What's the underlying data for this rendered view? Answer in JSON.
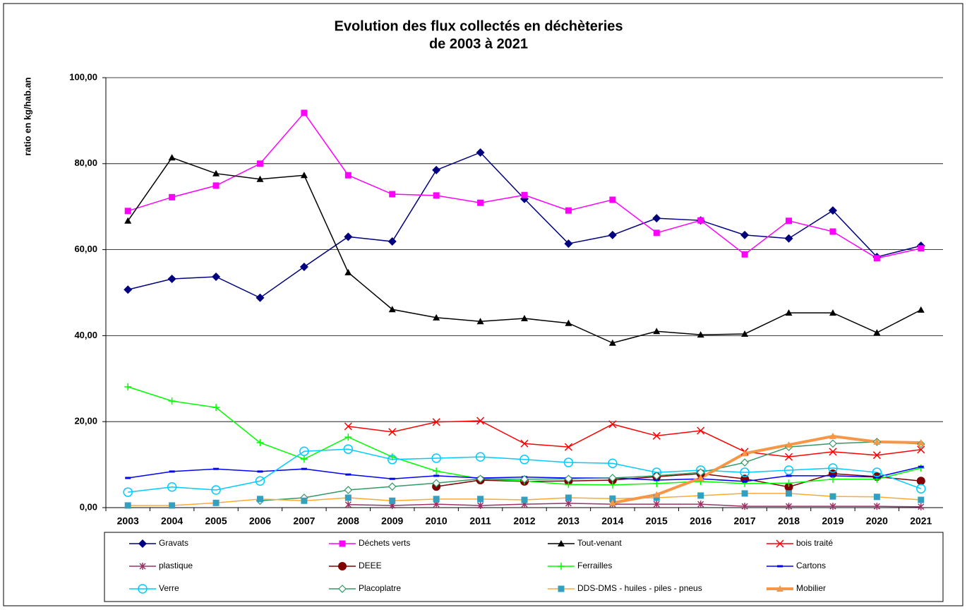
{
  "chart_data": {
    "type": "line",
    "title": "Evolution des flux collectés en déchèteries",
    "subtitle": "de 2003 à 2021",
    "y_label": "ratio en kg/hab.an",
    "categories": [
      "2003",
      "2004",
      "2005",
      "2006",
      "2007",
      "2008",
      "2009",
      "2010",
      "2011",
      "2012",
      "2013",
      "2014",
      "2015",
      "2016",
      "2017",
      "2018",
      "2019",
      "2020",
      "2021"
    ],
    "ylim": [
      0,
      100
    ],
    "yticks": [
      {
        "value": 0,
        "label": "0,00"
      },
      {
        "value": 20,
        "label": "20,00"
      },
      {
        "value": 40,
        "label": "40,00"
      },
      {
        "value": 60,
        "label": "60,00"
      },
      {
        "value": 80,
        "label": "80,00"
      },
      {
        "value": 100,
        "label": "100,00"
      }
    ],
    "grid": true,
    "legend": "bottom",
    "series": [
      {
        "name": "Gravats",
        "color": "#000080",
        "marker": "diamond",
        "values": [
          50.7,
          53.2,
          53.7,
          48.8,
          56,
          63,
          61.9,
          78.5,
          82.6,
          71.8,
          61.4,
          63.4,
          67.3,
          66.8,
          63.4,
          62.6,
          69.1,
          58.3,
          60.9
        ]
      },
      {
        "name": "Déchets verts",
        "color": "#ff00ff",
        "marker": "square",
        "values": [
          69,
          72.2,
          74.9,
          80,
          91.8,
          77.3,
          72.9,
          72.6,
          70.9,
          72.7,
          69.1,
          71.6,
          63.9,
          66.8,
          58.9,
          66.7,
          64.2,
          58,
          60.3
        ]
      },
      {
        "name": "Tout-venant",
        "color": "#000000",
        "marker": "triangle",
        "values": [
          66.7,
          81.4,
          77.7,
          76.4,
          77.3,
          54.7,
          46.1,
          44.2,
          43.3,
          44,
          42.9,
          38.3,
          41,
          40.2,
          40.4,
          45.3,
          45.3,
          40.7,
          46
        ]
      },
      {
        "name": "bois traité",
        "color": "#ff0000",
        "marker": "x",
        "values": [
          null,
          null,
          null,
          null,
          null,
          18.9,
          17.6,
          19.9,
          20.2,
          14.9,
          14.1,
          19.4,
          16.7,
          17.9,
          13,
          11.8,
          13,
          12.2,
          13.5
        ]
      },
      {
        "name": "plastique",
        "color": "#993366",
        "marker": "star",
        "values": [
          null,
          null,
          null,
          null,
          null,
          0.7,
          0.5,
          0.8,
          0.5,
          0.8,
          1,
          0.8,
          0.8,
          0.8,
          0.3,
          0.3,
          0.3,
          0.3,
          0.2
        ]
      },
      {
        "name": "DEEE",
        "color": "#800000",
        "marker": "circle",
        "values": [
          null,
          null,
          null,
          null,
          null,
          null,
          null,
          4.9,
          6.4,
          6.1,
          6.2,
          6.4,
          7.2,
          7.9,
          6.7,
          4.8,
          7.9,
          7.2,
          6.2
        ]
      },
      {
        "name": "Ferrailles",
        "color": "#00ff00",
        "marker": "plus",
        "values": [
          28.1,
          24.8,
          23.3,
          15.1,
          11.3,
          16.4,
          11.8,
          8.5,
          6.7,
          6.2,
          5.4,
          5.3,
          5.6,
          6.1,
          5.6,
          5.7,
          6.6,
          6.6,
          9.2
        ]
      },
      {
        "name": "Cartons",
        "color": "#0000ff",
        "marker": "dash",
        "values": [
          6.9,
          8.4,
          9,
          8.4,
          9,
          7.7,
          6.7,
          7.4,
          6.9,
          7.1,
          6.9,
          6.9,
          6.4,
          6.7,
          6.1,
          7.4,
          7.4,
          7.1,
          9.5
        ]
      },
      {
        "name": "Verre",
        "color": "#00ccff",
        "marker": "open-circle",
        "values": [
          3.6,
          4.8,
          4.1,
          6.2,
          13.1,
          13.6,
          11.2,
          11.5,
          11.8,
          11.2,
          10.5,
          10.3,
          8.2,
          8.7,
          8.2,
          8.7,
          9.2,
          8.2,
          4.4
        ]
      },
      {
        "name": "Placoplatre",
        "color": "#339966",
        "marker": "open-diamond",
        "values": [
          null,
          null,
          null,
          1.6,
          2.3,
          4.1,
          4.9,
          5.7,
          6.7,
          6.6,
          6.7,
          6.9,
          7.4,
          8.2,
          10.5,
          14.1,
          14.9,
          15.3,
          14.8
        ]
      },
      {
        "name": "DDS-DMS - huiles - piles - pneus",
        "color": "#ffaa33",
        "marker": "square",
        "marker_color": "#33a0c0",
        "values": [
          0.5,
          0.5,
          1.1,
          2,
          1.6,
          2.3,
          1.6,
          2,
          2,
          1.8,
          2.3,
          2.1,
          2.3,
          2.8,
          3.3,
          3.3,
          2.6,
          2.5,
          1.8
        ]
      },
      {
        "name": "Mobilier",
        "color": "#f79646",
        "marker": "triangle",
        "width": 4,
        "values": [
          null,
          null,
          null,
          null,
          null,
          null,
          null,
          null,
          null,
          null,
          null,
          1.1,
          3,
          6.9,
          12.6,
          14.6,
          16.6,
          15.3,
          15.1
        ]
      }
    ]
  }
}
